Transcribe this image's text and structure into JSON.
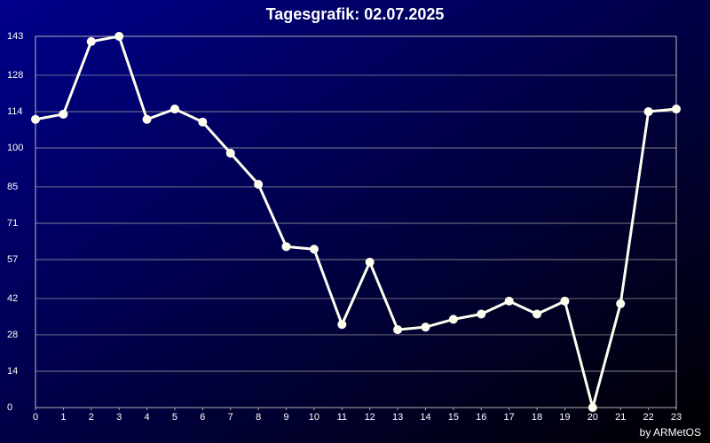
{
  "chart_data": {
    "type": "line",
    "title": "Tagesgrafik: 02.07.2025",
    "footer": "by ARMetOS",
    "x": [
      0,
      1,
      2,
      3,
      4,
      5,
      6,
      7,
      8,
      9,
      10,
      11,
      12,
      13,
      14,
      15,
      16,
      17,
      18,
      19,
      20,
      21,
      22,
      23
    ],
    "xlim": [
      0,
      23
    ],
    "xticks": [
      0,
      1,
      2,
      3,
      4,
      5,
      6,
      7,
      8,
      9,
      10,
      11,
      12,
      13,
      14,
      15,
      16,
      17,
      18,
      19,
      20,
      21,
      22,
      23
    ],
    "ylim": [
      0,
      143
    ],
    "yticks": [
      0,
      14,
      28,
      42,
      57,
      71,
      85,
      100,
      114,
      128,
      143
    ],
    "grid": true,
    "color": "#fffff0",
    "values": [
      111,
      113,
      141,
      143,
      111,
      115,
      110,
      98,
      86,
      62,
      61,
      32,
      56,
      30,
      31,
      34,
      36,
      41,
      36,
      41,
      0,
      40,
      114,
      115
    ]
  }
}
